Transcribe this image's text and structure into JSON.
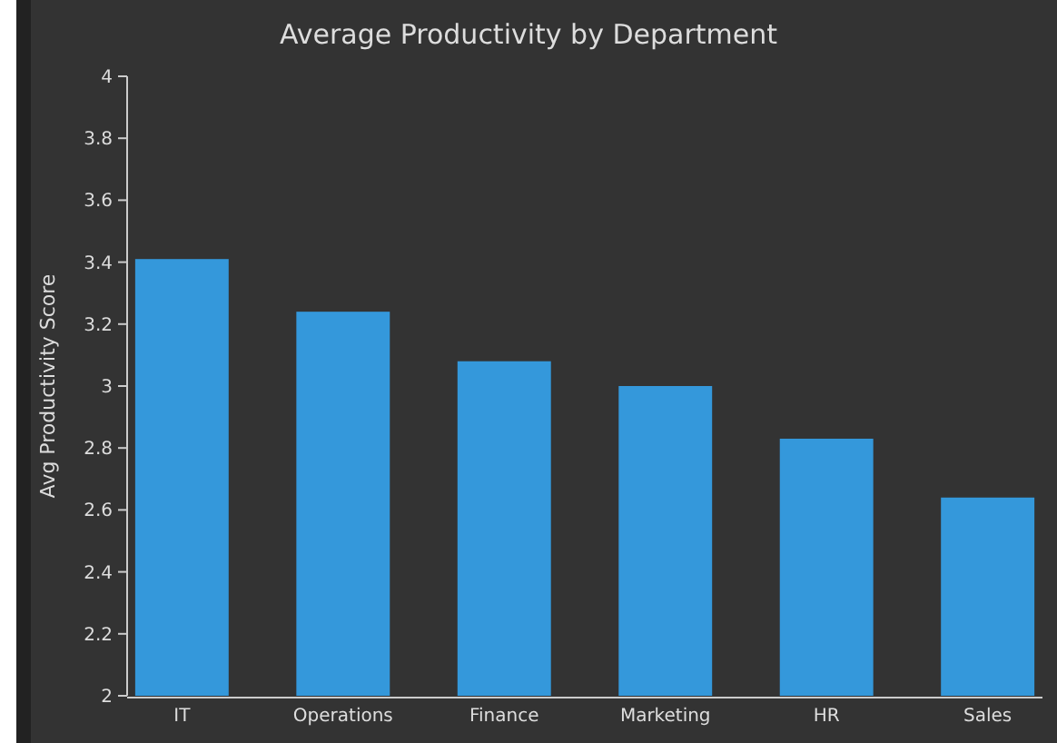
{
  "chart_data": {
    "type": "bar",
    "title": "Average Productivity by Department",
    "ylabel": "Avg Productivity Score",
    "categories": [
      "IT",
      "Operations",
      "Finance",
      "Marketing",
      "HR",
      "Sales"
    ],
    "values": [
      3.41,
      3.24,
      3.08,
      3.0,
      2.83,
      2.64
    ],
    "color": "#3498db",
    "ylim": [
      2,
      4
    ],
    "yticks": [
      2,
      2.2,
      2.4,
      2.6,
      2.8,
      3,
      3.2,
      3.4,
      3.6,
      3.8,
      4
    ],
    "grid": false
  }
}
